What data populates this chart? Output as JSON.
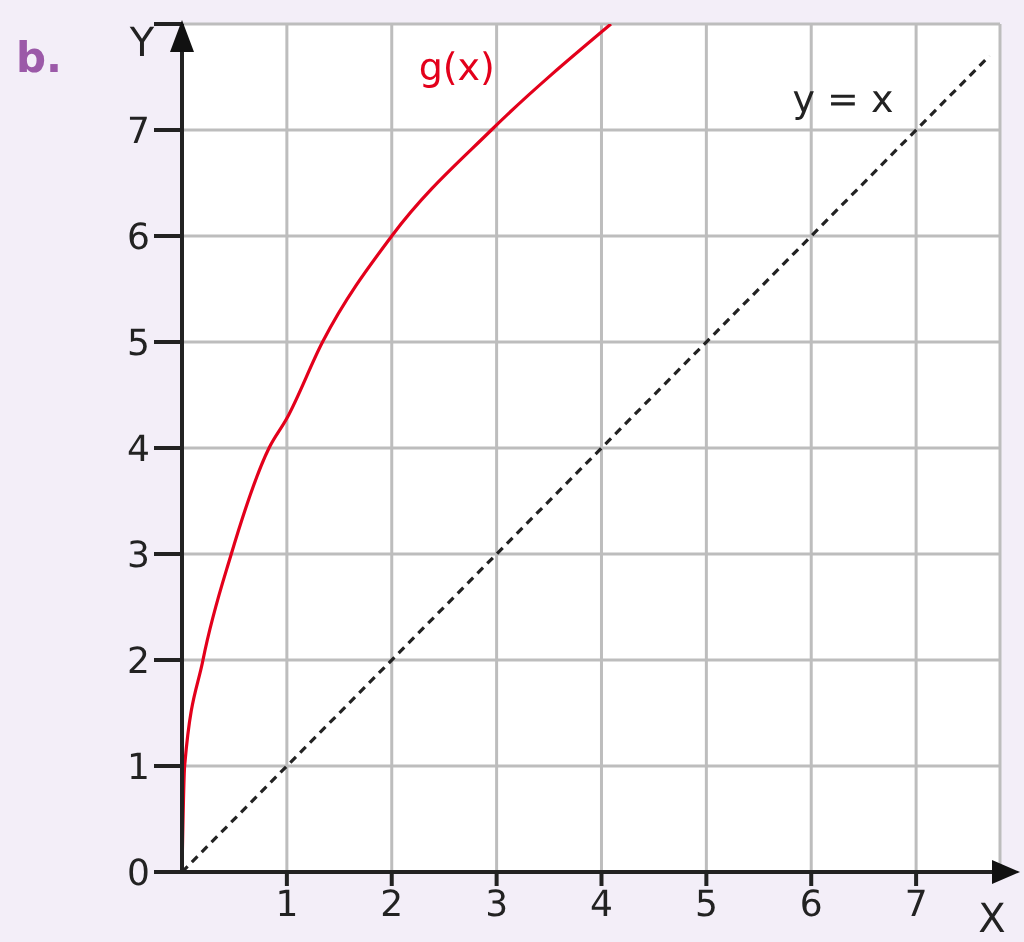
{
  "chart_data": {
    "type": "line",
    "xlabel": "X",
    "ylabel": "Y",
    "annotations": [
      "b."
    ],
    "xlim": [
      0,
      7.8
    ],
    "ylim": [
      0,
      8
    ],
    "xticks": [
      1,
      2,
      3,
      4,
      5,
      6,
      7
    ],
    "yticks": [
      0,
      1,
      2,
      3,
      4,
      5,
      6,
      7,
      {
        "value": 8,
        "label": null
      }
    ],
    "grid": true,
    "marker": "none",
    "series": [
      {
        "name": "g(x)",
        "color": "#e3001b",
        "line_style": "solid",
        "x": [
          0,
          0.025,
          0.2,
          0.47,
          0.83,
          1,
          1.34,
          2,
          2.95,
          4.09
        ],
        "values": [
          0,
          1,
          2,
          3,
          4,
          4.28,
          5,
          6,
          7,
          8
        ]
      },
      {
        "name": "y = x",
        "color": "#222222",
        "line_style": "dashed",
        "x": [
          0,
          7.7
        ],
        "values": [
          0,
          7.7
        ]
      }
    ]
  }
}
